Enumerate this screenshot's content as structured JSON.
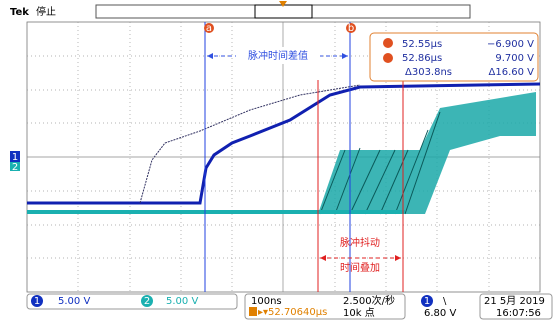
{
  "header": {
    "brand": "Tek",
    "state": "停止"
  },
  "cursors": {
    "a": "a",
    "b": "b"
  },
  "annotations": {
    "delay": "脉冲时间差值",
    "jitter_1": "脉冲抖动",
    "jitter_2": "时间叠加"
  },
  "readout": {
    "a_time": "52.55μs",
    "a_volt": "−6.900 V",
    "b_time": "52.86μs",
    "b_volt": "9.700 V",
    "delta_time": "Δ303.8ns",
    "delta_volt": "Δ16.60 V"
  },
  "channels": {
    "ch1": "1",
    "ch2": "2"
  },
  "status": {
    "ch1_num": "1",
    "ch1_scale": "5.00 V",
    "ch2_num": "2",
    "ch2_scale": "5.00 V",
    "timebase": "100ns",
    "rate": "2.500次/秒",
    "trig_ch": "1",
    "trig_slope": "\\",
    "date": "21 5月 2019",
    "position": "▸▾52.70640μs",
    "points": "10k 点",
    "trig_level": "6.80 V",
    "time": "16:07:56"
  }
}
